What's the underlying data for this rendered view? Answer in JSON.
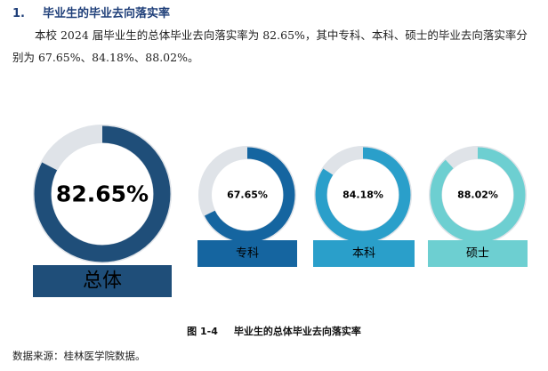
{
  "heading": {
    "number": "1.",
    "title": "毕业生的毕业去向落实率"
  },
  "intro_text": "本校 2024 届毕业生的总体毕业去向落实率为 82.65%，其中专科、本科、硕士的毕业去向落实率分别为 67.65%、84.18%、88.02%。",
  "chart_data": {
    "type": "pie",
    "title": "",
    "series": [
      {
        "name": "总体",
        "value": 82.65,
        "value_label": "82.65%",
        "color": "#1f4e79"
      },
      {
        "name": "专科",
        "value": 67.65,
        "value_label": "67.65%",
        "color": "#1565a0"
      },
      {
        "name": "本科",
        "value": 84.18,
        "value_label": "84.18%",
        "color": "#2a9fca"
      },
      {
        "name": "硕士",
        "value": 88.02,
        "value_label": "88.02%",
        "color": "#6dcfd1"
      }
    ]
  },
  "caption": {
    "figure_no": "图 1-4",
    "text": "毕业生的总体毕业去向落实率"
  },
  "source": "数据来源：桂林医学院数据。"
}
